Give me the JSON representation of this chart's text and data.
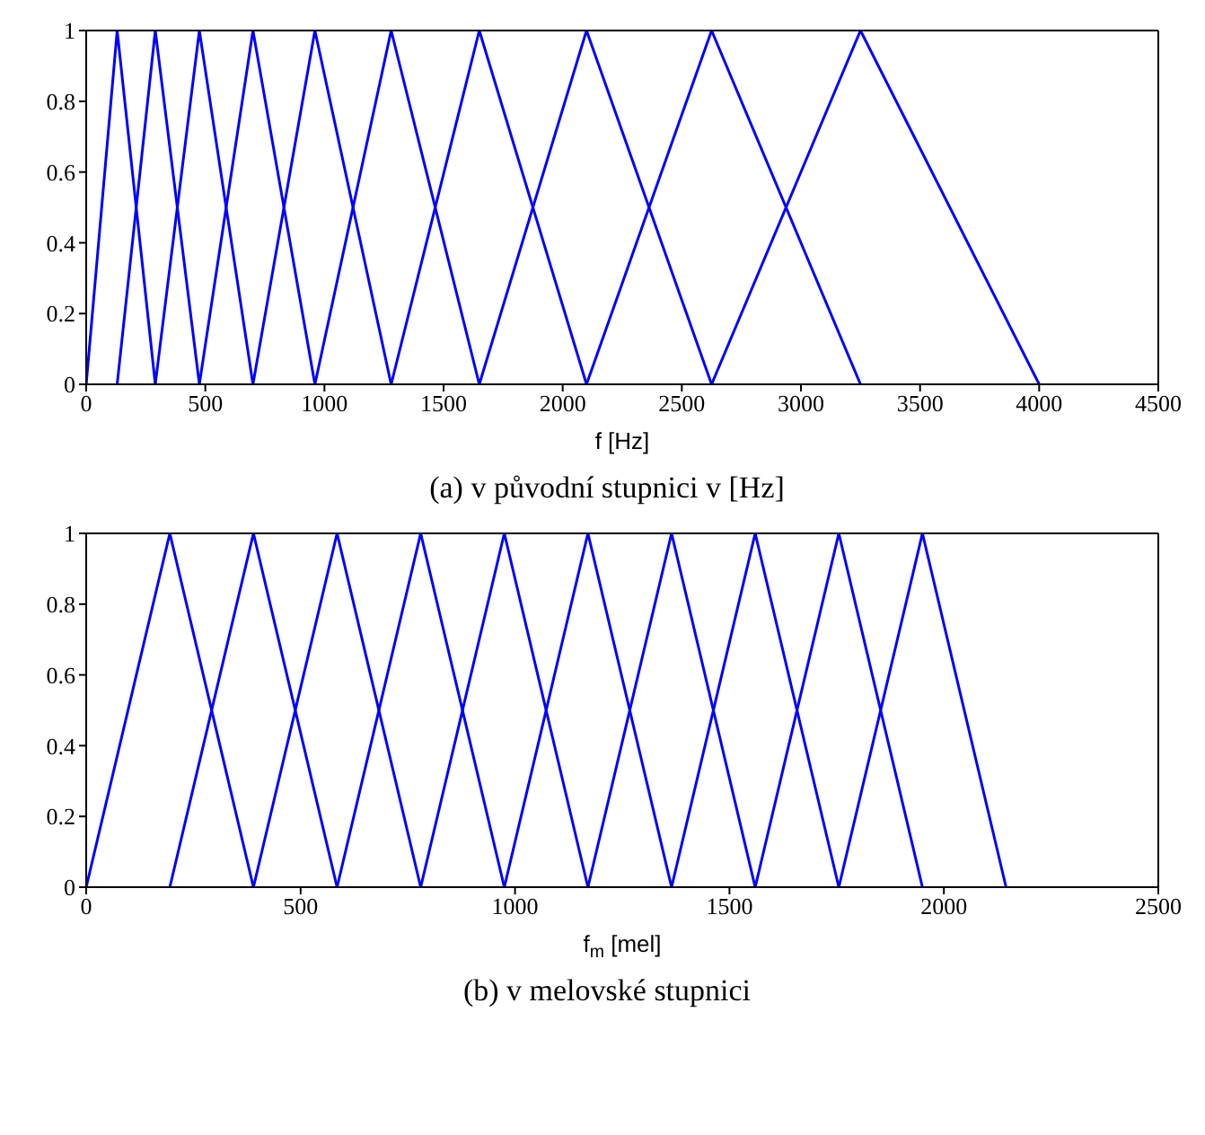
{
  "chart_data": [
    {
      "type": "line",
      "xlabel": "f [Hz]",
      "annotations": [
        "(a) v původní stupnici v [Hz]"
      ],
      "xlim": [
        0,
        4500
      ],
      "xticks": [
        0,
        500,
        1000,
        1500,
        2000,
        2500,
        3000,
        3500,
        4000,
        4500
      ],
      "ylim": [
        0,
        1
      ],
      "yticks": [
        0,
        0.2,
        0.4,
        0.6,
        0.8,
        1
      ],
      "series": [
        {
          "color": "#0000ff",
          "x": [
            0,
            130,
            290
          ],
          "values": [
            0,
            1,
            0
          ]
        },
        {
          "color": "#0000ff",
          "x": [
            130,
            290,
            475
          ],
          "values": [
            0,
            1,
            0
          ]
        },
        {
          "color": "#0000ff",
          "x": [
            290,
            475,
            700
          ],
          "values": [
            0,
            1,
            0
          ]
        },
        {
          "color": "#0000ff",
          "x": [
            475,
            700,
            960
          ],
          "values": [
            0,
            1,
            0
          ]
        },
        {
          "color": "#0000ff",
          "x": [
            700,
            960,
            1280
          ],
          "values": [
            0,
            1,
            0
          ]
        },
        {
          "color": "#0000ff",
          "x": [
            960,
            1280,
            1650
          ],
          "values": [
            0,
            1,
            0
          ]
        },
        {
          "color": "#0000ff",
          "x": [
            1280,
            1650,
            2100
          ],
          "values": [
            0,
            1,
            0
          ]
        },
        {
          "color": "#0000ff",
          "x": [
            1650,
            2100,
            2625
          ],
          "values": [
            0,
            1,
            0
          ]
        },
        {
          "color": "#0000ff",
          "x": [
            2100,
            2625,
            3250
          ],
          "values": [
            0,
            1,
            0
          ]
        },
        {
          "color": "#0000ff",
          "x": [
            2625,
            3250,
            4000
          ],
          "values": [
            0,
            1,
            0
          ]
        }
      ]
    },
    {
      "type": "line",
      "xlabel": "f$_{m}$ [mel]",
      "annotations": [
        "(b) v melovské stupnici"
      ],
      "xlim": [
        0,
        2500
      ],
      "xticks": [
        0,
        500,
        1000,
        1500,
        2000,
        2500
      ],
      "ylim": [
        0,
        1
      ],
      "yticks": [
        0,
        0.2,
        0.4,
        0.6,
        0.8,
        1
      ],
      "series": [
        {
          "color": "#0000ff",
          "x": [
            0,
            195,
            390
          ],
          "values": [
            0,
            1,
            0
          ]
        },
        {
          "color": "#0000ff",
          "x": [
            195,
            390,
            585
          ],
          "values": [
            0,
            1,
            0
          ]
        },
        {
          "color": "#0000ff",
          "x": [
            390,
            585,
            780
          ],
          "values": [
            0,
            1,
            0
          ]
        },
        {
          "color": "#0000ff",
          "x": [
            585,
            780,
            975
          ],
          "values": [
            0,
            1,
            0
          ]
        },
        {
          "color": "#0000ff",
          "x": [
            780,
            975,
            1170
          ],
          "values": [
            0,
            1,
            0
          ]
        },
        {
          "color": "#0000ff",
          "x": [
            975,
            1170,
            1365
          ],
          "values": [
            0,
            1,
            0
          ]
        },
        {
          "color": "#0000ff",
          "x": [
            1170,
            1365,
            1560
          ],
          "values": [
            0,
            1,
            0
          ]
        },
        {
          "color": "#0000ff",
          "x": [
            1365,
            1560,
            1755
          ],
          "values": [
            0,
            1,
            0
          ]
        },
        {
          "color": "#0000ff",
          "x": [
            1560,
            1755,
            1950
          ],
          "values": [
            0,
            1,
            0
          ]
        },
        {
          "color": "#0000ff",
          "x": [
            1755,
            1950,
            2145
          ],
          "values": [
            0,
            1,
            0
          ]
        }
      ]
    }
  ]
}
